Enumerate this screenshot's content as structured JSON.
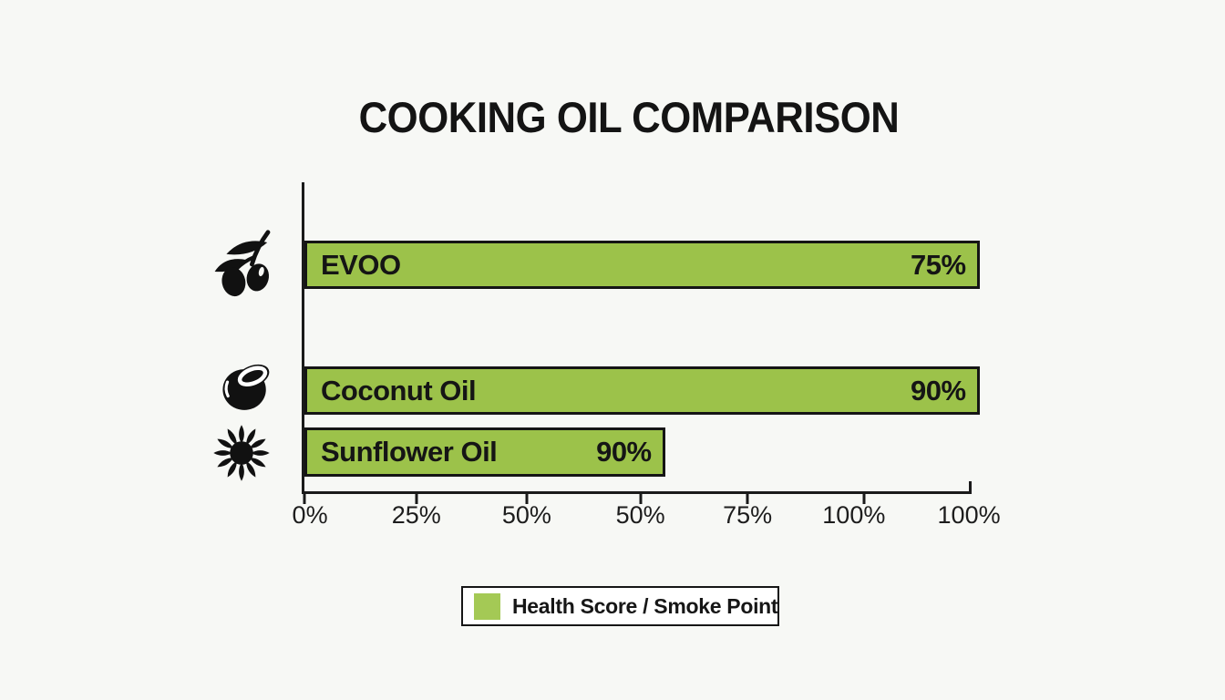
{
  "colors": {
    "background": "#f7f8f5",
    "bar": "#9cc24a",
    "legend_swatch": "#a4c955",
    "axis": "#1a1a1a",
    "text": "#141414",
    "bar_border": "#151515"
  },
  "chart_data": {
    "type": "bar",
    "orientation": "horizontal",
    "title": "COOKING OIL COMPARISON",
    "categories": [
      "EVOO",
      "Coconut Oil",
      "Sunflower Oil"
    ],
    "values": [
      75,
      90,
      90
    ],
    "value_labels": [
      "75%",
      "90%",
      "90%"
    ],
    "series": [
      {
        "name": "Health Score / Smoke Point",
        "values": [
          75,
          90,
          90
        ]
      }
    ],
    "row_icons": [
      "olive-icon",
      "coconut-icon",
      "sunflower-icon"
    ],
    "bar_render_widths_pct": [
      100.9,
      100.9,
      53.9
    ],
    "xlim": [
      0,
      100
    ],
    "grid": false,
    "x_ticks": {
      "labels": [
        "0%",
        "25%",
        "50%",
        "50%",
        "75%",
        "100%",
        "100%"
      ],
      "label_positions_pct": [
        1.1,
        17.0,
        33.5,
        50.5,
        66.5,
        82.4,
        99.6
      ],
      "mark_positions_pct": [
        0.3,
        17.0,
        33.5,
        50.5,
        66.5,
        83.9
      ]
    },
    "legend": {
      "label": "Health Score / Smoke Point",
      "position": "bottom"
    }
  }
}
